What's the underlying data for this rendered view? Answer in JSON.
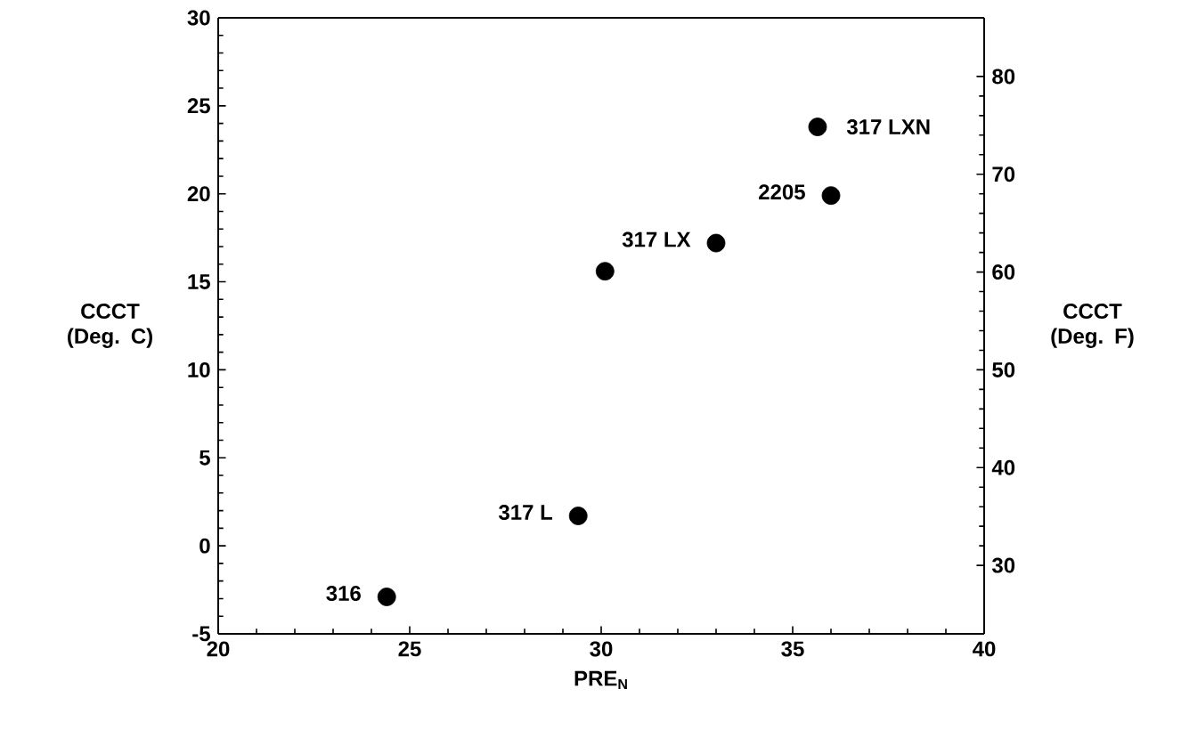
{
  "chart_data": {
    "type": "scatter",
    "xlabel": "PRE$_{N}$",
    "ylabel": "CCCT (Deg. C)",
    "y2label": "CCCT (Deg. F)",
    "xlim": [
      20,
      40
    ],
    "xticks": [
      20,
      25,
      30,
      35,
      40
    ],
    "ylim": [
      -5,
      30
    ],
    "yticks": [
      -5,
      0,
      5,
      10,
      15,
      20,
      25,
      30
    ],
    "y2lim": [
      23,
      86
    ],
    "y2ticks": [
      30,
      40,
      50,
      60,
      70,
      80
    ],
    "marker": "circle",
    "series": [
      {
        "color": "#000000",
        "x": [
          24.4,
          29.4,
          30.1,
          33.0,
          36.0,
          35.65
        ],
        "values": [
          -2.9,
          1.7,
          15.6,
          17.2,
          19.9,
          23.8
        ]
      }
    ],
    "annotations": [
      {
        "text": "316",
        "x": 24.4,
        "y": -2.9
      },
      {
        "text": "317 L",
        "x": 29.4,
        "y": 1.7
      },
      {
        "text": "317 LX",
        "x": 33.0,
        "y": 17.2
      },
      {
        "text": "2205",
        "x": 36.0,
        "y": 19.9
      },
      {
        "text": "317 LXN",
        "x": 35.65,
        "y": 23.8
      }
    ]
  }
}
